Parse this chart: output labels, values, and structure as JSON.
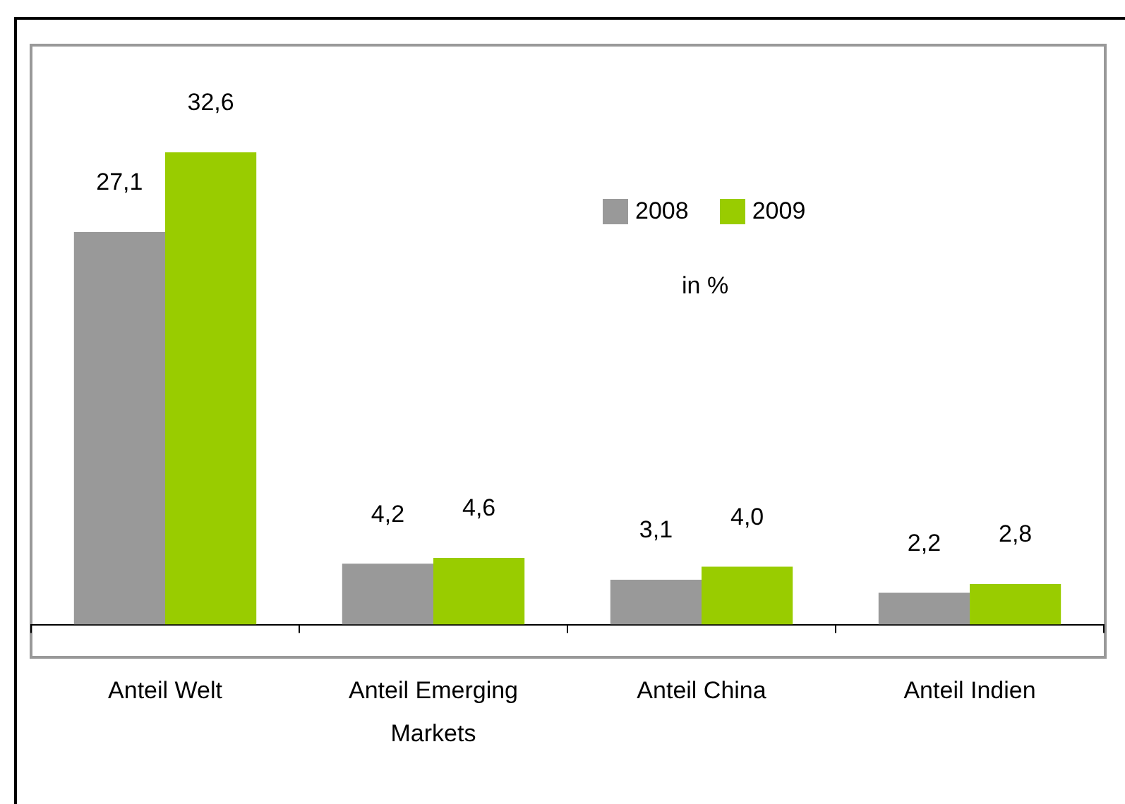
{
  "chart_data": {
    "type": "bar",
    "categories": [
      "Anteil Welt",
      "Anteil Emerging Markets",
      "Anteil China",
      "Anteil Indien"
    ],
    "series": [
      {
        "name": "2008",
        "color": "#999999",
        "values": [
          27.1,
          4.2,
          3.1,
          2.2
        ],
        "value_labels": [
          "27,1",
          "4,2",
          "3,1",
          "2,2"
        ]
      },
      {
        "name": "2009",
        "color": "#99cc00",
        "values": [
          32.6,
          4.6,
          4.0,
          2.8
        ],
        "value_labels": [
          "32,6",
          "4,6",
          "4,0",
          "2,8"
        ]
      }
    ],
    "annotations": [
      "in %"
    ],
    "legend": "top right",
    "grid": false
  }
}
